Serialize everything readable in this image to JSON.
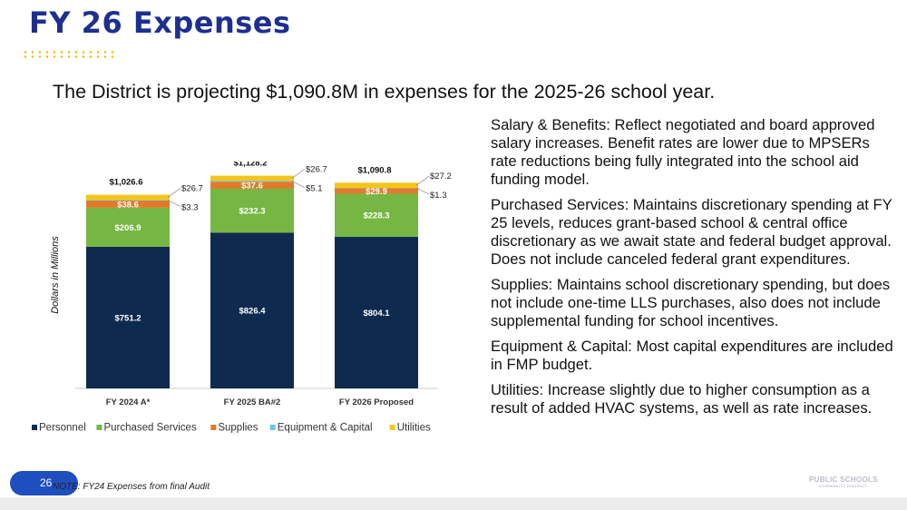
{
  "slide": {
    "title": "FY 26 Expenses",
    "subtitle": "The District is projecting $1,090.8M in expenses for the 2025-26 school year.",
    "page_number": "26",
    "footnote": "NOTE: FY24 Expenses from final Audit",
    "logo_text": "PUBLIC SCHOOLS",
    "logo_subtext": "COMMUNITY DISTRICT"
  },
  "notes": [
    {
      "heading": "Salary & Benefits:",
      "text": " Reflect negotiated and board approved salary increases. Benefit rates are lower due to MPSERs rate reductions being fully integrated into the school aid funding model."
    },
    {
      "heading": "Purchased Services:",
      "text": " Maintains discretionary spending at FY 25 levels, reduces grant-based school & central office discretionary as we await state and federal budget approval. Does not include canceled federal grant expenditures."
    },
    {
      "heading": "Supplies:",
      "text": " Maintains school discretionary spending, but does not include one-time LLS purchases, also does not include supplemental funding for school incentives."
    },
    {
      "heading": "Equipment & Capital:",
      "text": " Most capital expenditures are included in FMP budget."
    },
    {
      "heading": "Utilities:",
      "text": " Increase slightly due to higher consumption as a result of added HVAC systems, as well as rate increases."
    }
  ],
  "chart_data": {
    "type": "bar",
    "stacked": true,
    "categories": [
      "FY 2024 A*",
      "FY 2025 BA#2",
      "FY 2026 Proposed"
    ],
    "ylabel": "Dollars in Millions",
    "ylim": [
      0,
      1200
    ],
    "grid": false,
    "legend_position": "bottom",
    "series": [
      {
        "name": "Personnel",
        "color": "#0e2a4f",
        "values": [
          751.2,
          826.4,
          804.1
        ],
        "labels": [
          "$751.2",
          "$826.4",
          "$804.1"
        ]
      },
      {
        "name": "Purchased Services",
        "color": "#76b744",
        "values": [
          206.9,
          232.3,
          228.3
        ],
        "labels": [
          "$206.9",
          "$232.3",
          "$228.3"
        ]
      },
      {
        "name": "Supplies",
        "color": "#e07b2a",
        "values": [
          38.6,
          37.6,
          29.9
        ],
        "labels": [
          "$38.6",
          "$37.6",
          "$29.9"
        ]
      },
      {
        "name": "Equipment & Capital",
        "color": "#6cc5e8",
        "values": [
          3.3,
          5.1,
          1.3
        ],
        "labels": [
          "$3.3",
          "$5.1",
          "$1.3"
        ]
      },
      {
        "name": "Utilities",
        "color": "#f5c518",
        "values": [
          26.7,
          26.7,
          27.2
        ],
        "labels": [
          "$26.7",
          "$26.7",
          "$27.2"
        ]
      }
    ],
    "totals": [
      "$1,026.6",
      "$1,128.2",
      "$1,090.8"
    ]
  }
}
